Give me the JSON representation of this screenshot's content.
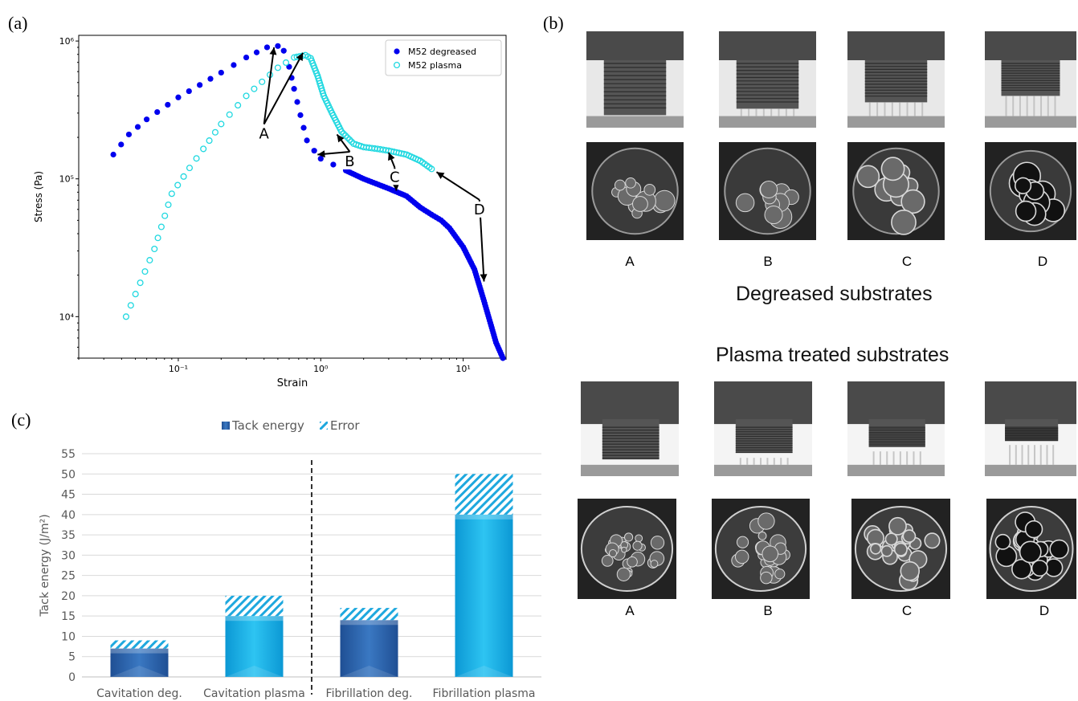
{
  "panels": {
    "a": "(a)",
    "b": "(b)",
    "c": "(c)"
  },
  "chart_data": [
    {
      "type": "scatter",
      "xlabel": "Strain",
      "ylabel": "Stress (Pa)",
      "xscale": "log",
      "yscale": "log",
      "xlim": [
        0.02,
        20
      ],
      "ylim": [
        5000,
        1100000
      ],
      "xticks": [
        {
          "value": 0.1,
          "label": "10⁻¹"
        },
        {
          "value": 1,
          "label": "10⁰"
        },
        {
          "value": 10,
          "label": "10¹"
        }
      ],
      "yticks": [
        {
          "value": 10000,
          "label": "10⁴"
        },
        {
          "value": 100000,
          "label": "10⁵"
        },
        {
          "value": 1000000,
          "label": "10⁶"
        }
      ],
      "legend_position": "top-right",
      "series": [
        {
          "name": "M52 degreased",
          "marker": "filled-circle",
          "color": "#0000ee",
          "key_points": [
            {
              "x": 0.035,
              "y": 150000
            },
            {
              "x": 0.045,
              "y": 210000
            },
            {
              "x": 0.06,
              "y": 270000
            },
            {
              "x": 0.1,
              "y": 390000
            },
            {
              "x": 0.2,
              "y": 590000
            },
            {
              "x": 0.3,
              "y": 760000
            },
            {
              "x": 0.42,
              "y": 900000
            },
            {
              "x": 0.5,
              "y": 920000
            },
            {
              "x": 0.55,
              "y": 850000
            },
            {
              "x": 0.6,
              "y": 650000
            },
            {
              "x": 0.65,
              "y": 450000
            },
            {
              "x": 0.72,
              "y": 290000
            },
            {
              "x": 0.8,
              "y": 190000
            },
            {
              "x": 0.9,
              "y": 160000
            },
            {
              "x": 1.0,
              "y": 140000
            },
            {
              "x": 1.5,
              "y": 115000
            },
            {
              "x": 2.0,
              "y": 100000
            },
            {
              "x": 3.0,
              "y": 85000
            },
            {
              "x": 4.0,
              "y": 75000
            },
            {
              "x": 5.0,
              "y": 62000
            },
            {
              "x": 6.0,
              "y": 55000
            },
            {
              "x": 7.0,
              "y": 50000
            },
            {
              "x": 8.0,
              "y": 44000
            },
            {
              "x": 10.0,
              "y": 32000
            },
            {
              "x": 12.0,
              "y": 22000
            },
            {
              "x": 14.0,
              "y": 13000
            },
            {
              "x": 17.0,
              "y": 6500
            },
            {
              "x": 19.0,
              "y": 5000
            }
          ]
        },
        {
          "name": "M52 plasma",
          "marker": "open-circle",
          "color": "#20d8e0",
          "key_points": [
            {
              "x": 0.043,
              "y": 10000
            },
            {
              "x": 0.068,
              "y": 31000
            },
            {
              "x": 0.09,
              "y": 78000
            },
            {
              "x": 0.12,
              "y": 120000
            },
            {
              "x": 0.15,
              "y": 165000
            },
            {
              "x": 0.2,
              "y": 250000
            },
            {
              "x": 0.3,
              "y": 400000
            },
            {
              "x": 0.5,
              "y": 640000
            },
            {
              "x": 0.65,
              "y": 760000
            },
            {
              "x": 0.78,
              "y": 790000
            },
            {
              "x": 0.85,
              "y": 750000
            },
            {
              "x": 0.95,
              "y": 560000
            },
            {
              "x": 1.05,
              "y": 400000
            },
            {
              "x": 1.2,
              "y": 300000
            },
            {
              "x": 1.4,
              "y": 220000
            },
            {
              "x": 1.7,
              "y": 180000
            },
            {
              "x": 2.0,
              "y": 170000
            },
            {
              "x": 2.5,
              "y": 165000
            },
            {
              "x": 3.0,
              "y": 160000
            },
            {
              "x": 4.0,
              "y": 150000
            },
            {
              "x": 5.0,
              "y": 135000
            },
            {
              "x": 6.0,
              "y": 118000
            }
          ]
        }
      ],
      "annotations": [
        {
          "text": "A",
          "x": 0.4,
          "y": 230000,
          "arrows_to": [
            [
              0.47,
              900000
            ],
            [
              0.75,
              820000
            ]
          ]
        },
        {
          "text": "B",
          "x": 1.6,
          "y": 145000,
          "arrows_to": [
            [
              0.95,
              150000
            ],
            [
              1.3,
              210000
            ]
          ]
        },
        {
          "text": "C",
          "x": 3.3,
          "y": 112000,
          "arrows_to": [
            [
              3.0,
              155000
            ],
            [
              3.4,
              82000
            ]
          ]
        },
        {
          "text": "D",
          "x": 13.0,
          "y": 65000,
          "arrows_to": [
            [
              6.5,
              112000
            ],
            [
              14.0,
              18000
            ]
          ]
        }
      ]
    },
    {
      "type": "bar",
      "ylabel": "Tack energy (J/m²)",
      "ylim": [
        0,
        55
      ],
      "yticks": [
        0,
        5,
        10,
        15,
        20,
        25,
        30,
        35,
        40,
        45,
        50,
        55
      ],
      "grid": true,
      "legend_position": "top-center",
      "categories": [
        "Cavitation deg.",
        "Cavitation plasma",
        "Fibrillation deg.",
        "Fibrillation plasma"
      ],
      "series": [
        {
          "name": "Tack energy",
          "values": [
            7,
            15,
            14,
            40
          ],
          "colors": [
            "#2e6bb6",
            "#12aee8",
            "#2e6bb6",
            "#12aee8"
          ]
        },
        {
          "name": "Error",
          "values": [
            2,
            5,
            3,
            10
          ]
        }
      ],
      "divider_after_category": 1
    }
  ],
  "photos": {
    "degreased": {
      "caption": "Degreased substrates",
      "labels": [
        "A",
        "B",
        "C",
        "D"
      ]
    },
    "plasma": {
      "caption": "Plasma treated substrates",
      "labels": [
        "A",
        "B",
        "C",
        "D"
      ]
    }
  }
}
